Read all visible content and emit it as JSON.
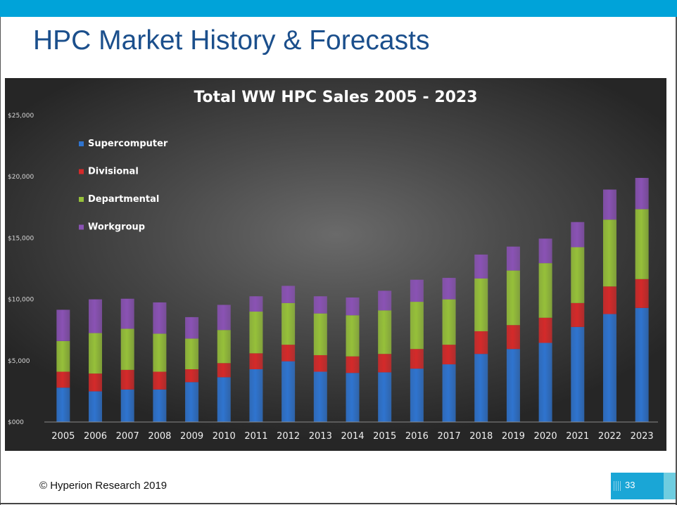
{
  "slide": {
    "title": "HPC Market History & Forecasts",
    "footer": "© Hyperion Research 2019",
    "page_number": "33"
  },
  "colors": {
    "top_bar": "#00a3d9",
    "title_text": "#1b4f8c",
    "Supercomputer": "#2f74cf",
    "Divisional": "#d42a2a",
    "Departmental": "#96c03a",
    "Workgroup": "#8a52b4"
  },
  "chart_data": {
    "type": "bar",
    "stacked": true,
    "title": "Total WW HPC Sales 2005 - 2023",
    "categories": [
      "2005",
      "2006",
      "2007",
      "2008",
      "2009",
      "2010",
      "2011",
      "2012",
      "2013",
      "2014",
      "2015",
      "2016",
      "2017",
      "2018",
      "2019",
      "2020",
      "2021",
      "2022",
      "2023"
    ],
    "series": [
      {
        "name": "Supercomputer",
        "values": [
          2800,
          2500,
          2650,
          2650,
          3250,
          3650,
          4300,
          4950,
          4100,
          4000,
          4050,
          4350,
          4700,
          5550,
          5950,
          6450,
          7750,
          8800,
          9300
        ]
      },
      {
        "name": "Divisional",
        "values": [
          1300,
          1450,
          1600,
          1450,
          1050,
          1150,
          1300,
          1350,
          1350,
          1350,
          1500,
          1600,
          1600,
          1850,
          1950,
          2050,
          1950,
          2250,
          2350
        ]
      },
      {
        "name": "Departmental",
        "values": [
          2500,
          3300,
          3350,
          3100,
          2500,
          2700,
          3400,
          3400,
          3400,
          3350,
          3550,
          3850,
          3700,
          4300,
          4450,
          4450,
          4550,
          5450,
          5700
        ]
      },
      {
        "name": "Workgroup",
        "values": [
          2550,
          2750,
          2450,
          2550,
          1750,
          2050,
          1250,
          1400,
          1400,
          1450,
          1600,
          1800,
          1750,
          1950,
          1950,
          2000,
          2050,
          2450,
          2550
        ]
      }
    ],
    "ylim": [
      0,
      25000
    ],
    "yticks": [
      "$000",
      "$5,000",
      "$10,000",
      "$15,000",
      "$20,000",
      "$25,000"
    ],
    "legend": [
      "Supercomputer",
      "Divisional",
      "Departmental",
      "Workgroup"
    ],
    "legend_position": "upper-left",
    "grid": false
  }
}
